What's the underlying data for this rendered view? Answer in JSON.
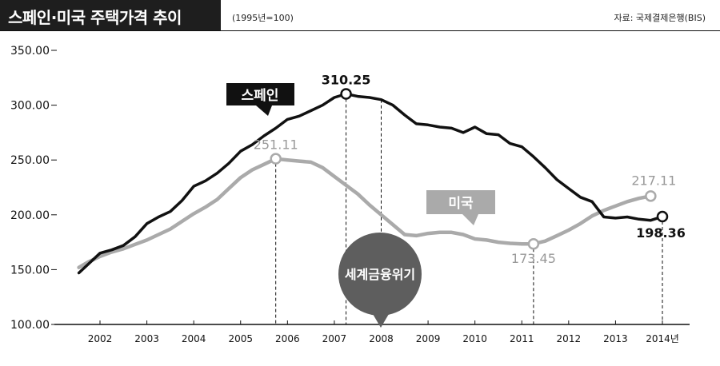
{
  "header": {
    "title": "스페인·미국 주택가격 추이",
    "base_note": "(1995년=100)",
    "source": "자료: 국제결제은행(BIS)"
  },
  "chart_data": {
    "type": "line",
    "xlabels": [
      "2002",
      "2003",
      "2004",
      "2005",
      "2006",
      "2007",
      "2008",
      "2009",
      "2010",
      "2011",
      "2012",
      "2013",
      "2014년"
    ],
    "xlim": [
      2001.5,
      2014.2
    ],
    "ylim": [
      100,
      350
    ],
    "yticks": [
      "100.00",
      "150.00",
      "200.00",
      "250.00",
      "300.00",
      "350.00"
    ],
    "event_label": "세계금융위기",
    "series": [
      {
        "name": "스페인",
        "color": "#111111",
        "points": [
          [
            2001.55,
            147
          ],
          [
            2001.75,
            155
          ],
          [
            2002.0,
            165
          ],
          [
            2002.25,
            168
          ],
          [
            2002.5,
            172
          ],
          [
            2002.75,
            180
          ],
          [
            2003.0,
            192
          ],
          [
            2003.25,
            198
          ],
          [
            2003.5,
            203
          ],
          [
            2003.75,
            213
          ],
          [
            2004.0,
            226
          ],
          [
            2004.25,
            231
          ],
          [
            2004.5,
            238
          ],
          [
            2004.75,
            247
          ],
          [
            2005.0,
            258
          ],
          [
            2005.25,
            264
          ],
          [
            2005.5,
            272
          ],
          [
            2005.75,
            279
          ],
          [
            2006.0,
            287
          ],
          [
            2006.25,
            290
          ],
          [
            2006.5,
            295
          ],
          [
            2006.75,
            300
          ],
          [
            2007.0,
            307
          ],
          [
            2007.25,
            310.25
          ],
          [
            2007.5,
            308
          ],
          [
            2007.75,
            307
          ],
          [
            2008.0,
            305
          ],
          [
            2008.25,
            300
          ],
          [
            2008.5,
            291
          ],
          [
            2008.75,
            283
          ],
          [
            2009.0,
            282
          ],
          [
            2009.25,
            280
          ],
          [
            2009.5,
            279
          ],
          [
            2009.75,
            275
          ],
          [
            2010.0,
            280
          ],
          [
            2010.25,
            274
          ],
          [
            2010.5,
            273
          ],
          [
            2010.75,
            265
          ],
          [
            2011.0,
            262
          ],
          [
            2011.25,
            253
          ],
          [
            2011.5,
            243
          ],
          [
            2011.75,
            232
          ],
          [
            2012.0,
            224
          ],
          [
            2012.25,
            216
          ],
          [
            2012.5,
            212
          ],
          [
            2012.75,
            198
          ],
          [
            2013.0,
            197
          ],
          [
            2013.25,
            198
          ],
          [
            2013.5,
            196
          ],
          [
            2013.75,
            195
          ],
          [
            2014.0,
            198.36
          ]
        ],
        "callout": {
          "value": "310.25",
          "x": 2007.25,
          "y": 310.25
        },
        "end_callout": {
          "value": "198.36",
          "x": 2014.0,
          "y": 198.36
        }
      },
      {
        "name": "미국",
        "color": "#aaaaaa",
        "points": [
          [
            2001.55,
            152
          ],
          [
            2001.75,
            157
          ],
          [
            2002.0,
            162
          ],
          [
            2002.25,
            166
          ],
          [
            2002.5,
            169
          ],
          [
            2002.75,
            173
          ],
          [
            2003.0,
            177
          ],
          [
            2003.25,
            182
          ],
          [
            2003.5,
            187
          ],
          [
            2003.75,
            194
          ],
          [
            2004.0,
            201
          ],
          [
            2004.25,
            207
          ],
          [
            2004.5,
            214
          ],
          [
            2004.75,
            224
          ],
          [
            2005.0,
            234
          ],
          [
            2005.25,
            241
          ],
          [
            2005.5,
            246
          ],
          [
            2005.75,
            251.11
          ],
          [
            2006.0,
            250
          ],
          [
            2006.25,
            249
          ],
          [
            2006.5,
            248
          ],
          [
            2006.75,
            243
          ],
          [
            2007.0,
            235
          ],
          [
            2007.25,
            227
          ],
          [
            2007.5,
            219
          ],
          [
            2007.75,
            209
          ],
          [
            2008.0,
            200
          ],
          [
            2008.25,
            191
          ],
          [
            2008.5,
            182
          ],
          [
            2008.75,
            181
          ],
          [
            2009.0,
            183
          ],
          [
            2009.25,
            184
          ],
          [
            2009.5,
            184
          ],
          [
            2009.75,
            182
          ],
          [
            2010.0,
            178
          ],
          [
            2010.25,
            177
          ],
          [
            2010.5,
            175
          ],
          [
            2010.75,
            174
          ],
          [
            2011.0,
            173.5
          ],
          [
            2011.25,
            173.45
          ],
          [
            2011.5,
            176
          ],
          [
            2011.75,
            181
          ],
          [
            2012.0,
            186
          ],
          [
            2012.25,
            192
          ],
          [
            2012.5,
            199
          ],
          [
            2012.75,
            204
          ],
          [
            2013.0,
            208
          ],
          [
            2013.25,
            212
          ],
          [
            2013.5,
            215
          ],
          [
            2013.75,
            217.11
          ]
        ],
        "callout": {
          "value": "251.11",
          "x": 2005.75,
          "y": 251.11
        },
        "low_callout": {
          "value": "173.45",
          "x": 2011.25,
          "y": 173.45
        },
        "end_callout": {
          "value": "217.11",
          "x": 2013.75,
          "y": 217.11
        }
      }
    ]
  }
}
